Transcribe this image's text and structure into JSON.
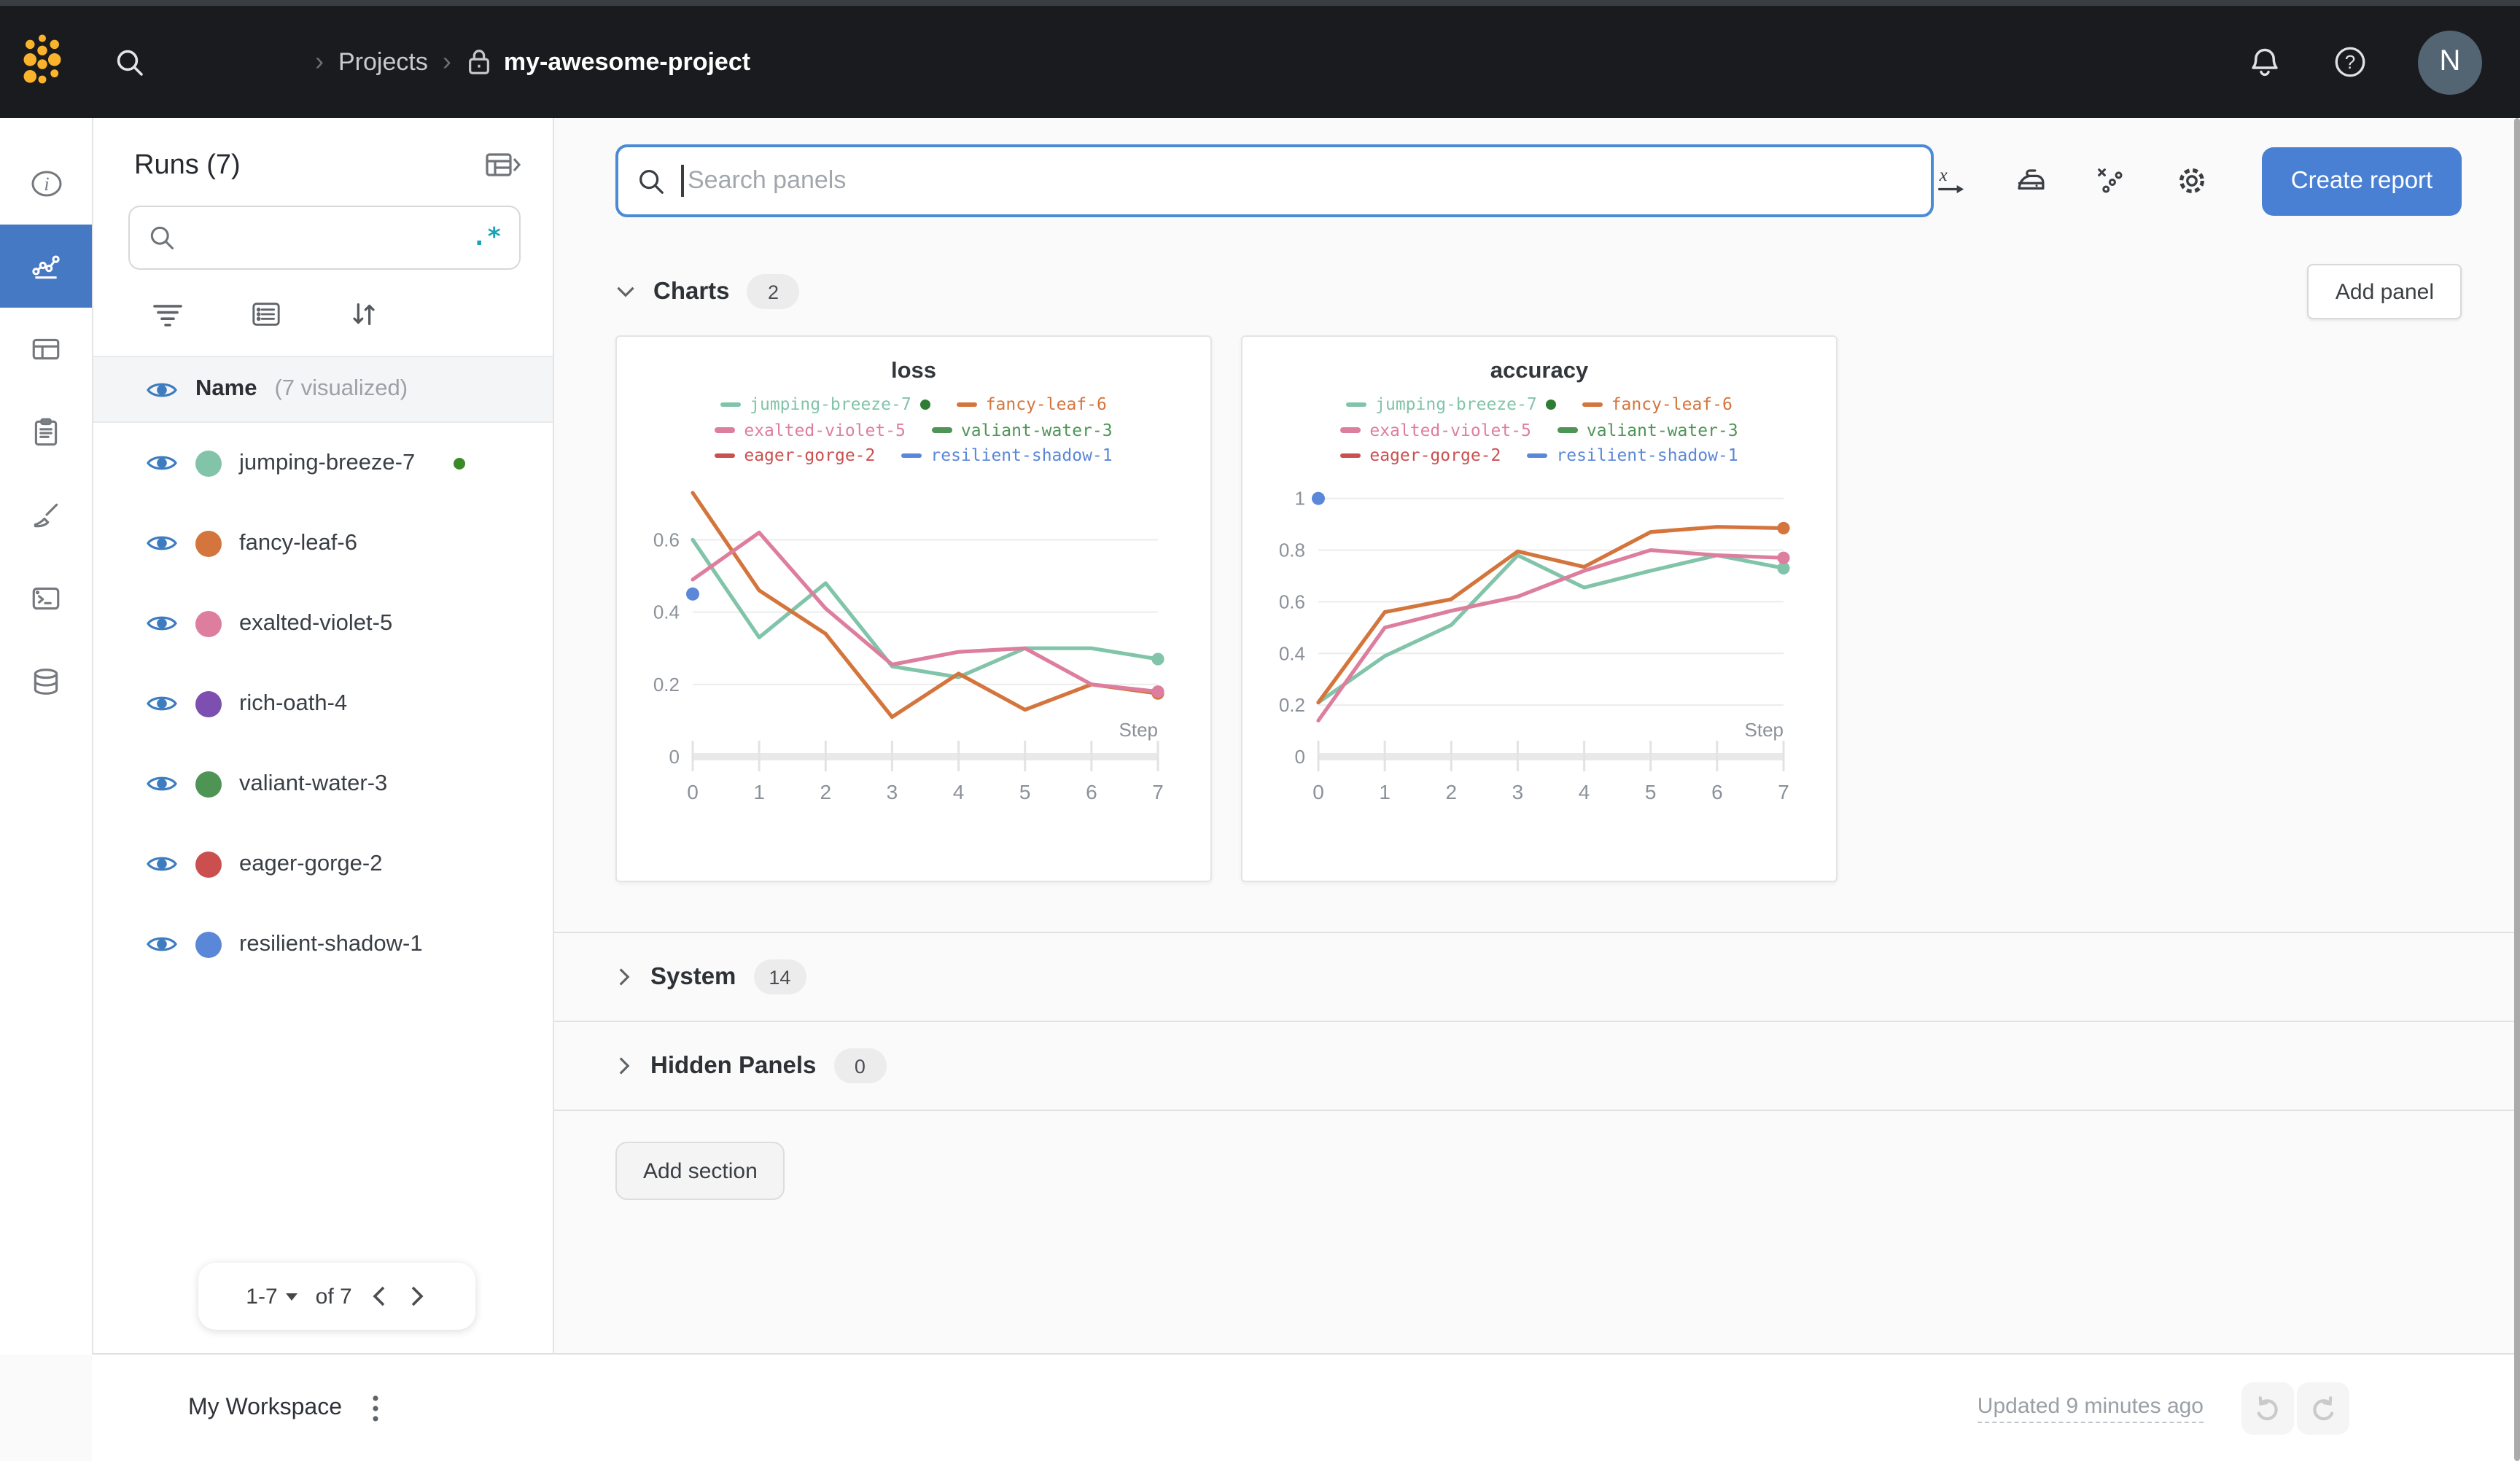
{
  "topbar": {
    "breadcrumb": {
      "separator": "›",
      "section": "Projects",
      "project": "my-awesome-project"
    },
    "avatar_initial": "N"
  },
  "runs_panel": {
    "title": "Runs (7)",
    "search": {
      "value": "",
      "regex_glyph": ".*"
    },
    "list_header": {
      "name": "Name",
      "visualized": "(7 visualized)"
    },
    "runs": [
      {
        "name": "jumping-breeze-7",
        "color": "#81c4a9",
        "running": true
      },
      {
        "name": "fancy-leaf-6",
        "color": "#d3753c"
      },
      {
        "name": "exalted-violet-5",
        "color": "#dd7e9f"
      },
      {
        "name": "rich-oath-4",
        "color": "#7d4fb0"
      },
      {
        "name": "valiant-water-3",
        "color": "#4e9455"
      },
      {
        "name": "eager-gorge-2",
        "color": "#cb4f4f"
      },
      {
        "name": "resilient-shadow-1",
        "color": "#5a87d7"
      }
    ],
    "pagination": {
      "range": "1-7",
      "of": "of 7"
    }
  },
  "main": {
    "panel_search_placeholder": "Search panels",
    "create_report": "Create report",
    "add_panel": "Add panel",
    "add_section": "Add section",
    "sections": [
      {
        "label": "Charts",
        "count": "2"
      },
      {
        "label": "System",
        "count": "14"
      },
      {
        "label": "Hidden Panels",
        "count": "0"
      }
    ]
  },
  "footer": {
    "workspace": "My Workspace",
    "updated": "Updated 9 minutes ago"
  },
  "colors": {
    "accent_blue": "#4a80d4",
    "active_rail": "#4579c4",
    "search_focus_border": "#4b8bd6",
    "regex_teal": "#1ba3b4",
    "running_green": "#2e7d32",
    "logo_yellow": "#fcb32c"
  },
  "chart_data": [
    {
      "type": "line",
      "title": "loss",
      "xlabel": "Step",
      "x": [
        0,
        1,
        2,
        3,
        4,
        5,
        6,
        7
      ],
      "xlim": [
        0,
        7
      ],
      "ylim": [
        0,
        0.75
      ],
      "yticks": [
        0,
        0.2,
        0.4,
        0.6
      ],
      "grid": true,
      "legend_position": "top",
      "series": [
        {
          "name": "jumping-breeze-7",
          "color": "#81c4a9",
          "running": true,
          "end_dot": true,
          "values": [
            0.6,
            0.33,
            0.48,
            0.25,
            0.22,
            0.3,
            0.3,
            0.27
          ]
        },
        {
          "name": "fancy-leaf-6",
          "color": "#d3753c",
          "end_dot": true,
          "values": [
            0.73,
            0.46,
            0.34,
            0.11,
            0.23,
            0.13,
            0.2,
            0.175
          ]
        },
        {
          "name": "exalted-violet-5",
          "color": "#dd7e9f",
          "end_dot": true,
          "values": [
            0.49,
            0.62,
            0.41,
            0.255,
            0.29,
            0.3,
            0.2,
            0.18
          ]
        },
        {
          "name": "valiant-water-3",
          "color": "#4e9455",
          "values": []
        },
        {
          "name": "eager-gorge-2",
          "color": "#cb4f4f",
          "values": []
        },
        {
          "name": "resilient-shadow-1",
          "color": "#5a87d7",
          "point_only": true,
          "values": [
            0.45
          ]
        }
      ]
    },
    {
      "type": "line",
      "title": "accuracy",
      "xlabel": "Step",
      "x": [
        0,
        1,
        2,
        3,
        4,
        5,
        6,
        7
      ],
      "xlim": [
        0,
        7
      ],
      "ylim": [
        0,
        1.05
      ],
      "yticks": [
        0,
        0.2,
        0.4,
        0.6,
        0.8,
        1
      ],
      "grid": true,
      "legend_position": "top",
      "series": [
        {
          "name": "jumping-breeze-7",
          "color": "#81c4a9",
          "running": true,
          "end_dot": true,
          "values": [
            0.21,
            0.39,
            0.51,
            0.78,
            0.655,
            0.72,
            0.78,
            0.73
          ]
        },
        {
          "name": "fancy-leaf-6",
          "color": "#d3753c",
          "end_dot": true,
          "values": [
            0.21,
            0.56,
            0.61,
            0.795,
            0.735,
            0.87,
            0.89,
            0.885
          ]
        },
        {
          "name": "exalted-violet-5",
          "color": "#dd7e9f",
          "end_dot": true,
          "values": [
            0.14,
            0.5,
            0.565,
            0.62,
            0.72,
            0.8,
            0.78,
            0.77
          ]
        },
        {
          "name": "valiant-water-3",
          "color": "#4e9455",
          "values": []
        },
        {
          "name": "eager-gorge-2",
          "color": "#cb4f4f",
          "values": []
        },
        {
          "name": "resilient-shadow-1",
          "color": "#5a87d7",
          "point_only": true,
          "values": [
            1.0
          ]
        }
      ]
    }
  ]
}
